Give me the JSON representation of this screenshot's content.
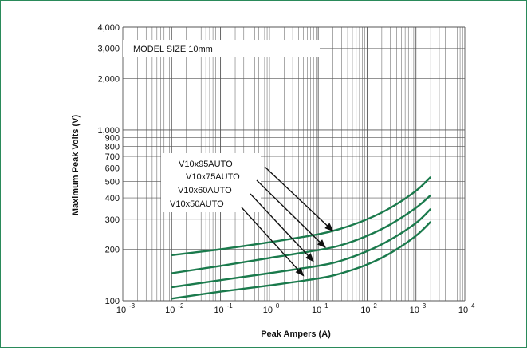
{
  "chart_data": {
    "type": "line",
    "title": "MODEL SIZE 10mm",
    "xlabel": "Peak Ampers (A)",
    "ylabel": "Maximum Peak Volts (V)",
    "x_scale": "log",
    "y_scale": "log",
    "xlim": [
      0.001,
      10000
    ],
    "ylim": [
      100,
      4000
    ],
    "grid": true,
    "x_ticks": [
      {
        "base": "10",
        "exp": "-3",
        "value": 0.001
      },
      {
        "base": "10",
        "exp": "-2",
        "value": 0.01
      },
      {
        "base": "10",
        "exp": "-1",
        "value": 0.1
      },
      {
        "base": "10",
        "exp": "0",
        "value": 1
      },
      {
        "base": "10",
        "exp": "1",
        "value": 10
      },
      {
        "base": "10",
        "exp": "2",
        "value": 100
      },
      {
        "base": "10",
        "exp": "3",
        "value": 1000
      },
      {
        "base": "10",
        "exp": "4",
        "value": 10000
      }
    ],
    "y_ticks": [
      {
        "label": "100",
        "value": 100
      },
      {
        "label": "200",
        "value": 200
      },
      {
        "label": "300",
        "value": 300
      },
      {
        "label": "400",
        "value": 400
      },
      {
        "label": "500",
        "value": 500
      },
      {
        "label": "600",
        "value": 600
      },
      {
        "label": "700",
        "value": 700
      },
      {
        "label": "800",
        "value": 800
      },
      {
        "label": "900",
        "value": 900
      },
      {
        "label": "1,000",
        "value": 1000
      },
      {
        "label": "2,000",
        "value": 2000
      },
      {
        "label": "3,000",
        "value": 3000
      },
      {
        "label": "4,000",
        "value": 4000
      }
    ],
    "series": [
      {
        "name": "V10x95AUTO",
        "x": [
          0.01,
          0.1,
          1,
          10,
          30,
          100,
          300,
          1000,
          2000
        ],
        "y": [
          185,
          200,
          220,
          245,
          265,
          300,
          350,
          440,
          530
        ]
      },
      {
        "name": "V10x75AUTO",
        "x": [
          0.01,
          0.1,
          1,
          10,
          30,
          100,
          300,
          1000,
          2000
        ],
        "y": [
          145,
          160,
          178,
          198,
          212,
          240,
          280,
          350,
          415
        ]
      },
      {
        "name": "V10x60AUTO",
        "x": [
          0.01,
          0.1,
          1,
          10,
          30,
          100,
          300,
          1000,
          2000
        ],
        "y": [
          120,
          132,
          145,
          160,
          172,
          195,
          228,
          285,
          345
        ]
      },
      {
        "name": "V10x50AUTO",
        "x": [
          0.01,
          0.1,
          1,
          10,
          30,
          100,
          300,
          1000,
          2000
        ],
        "y": [
          103,
          113,
          123,
          135,
          145,
          163,
          190,
          240,
          290
        ]
      }
    ],
    "annotations": [
      {
        "text": "V10x95AUTO",
        "series": 0,
        "target": [
          20,
          256
        ]
      },
      {
        "text": "V10x75AUTO",
        "series": 1,
        "target": [
          14,
          205
        ]
      },
      {
        "text": "V10x60AUTO",
        "series": 2,
        "target": [
          8,
          170
        ]
      },
      {
        "text": "V10x50AUTO",
        "series": 3,
        "target": [
          5,
          140
        ]
      }
    ],
    "colors": {
      "series": "#1a7a4c",
      "grid": "#555555",
      "border": "#2a8a5a"
    }
  }
}
